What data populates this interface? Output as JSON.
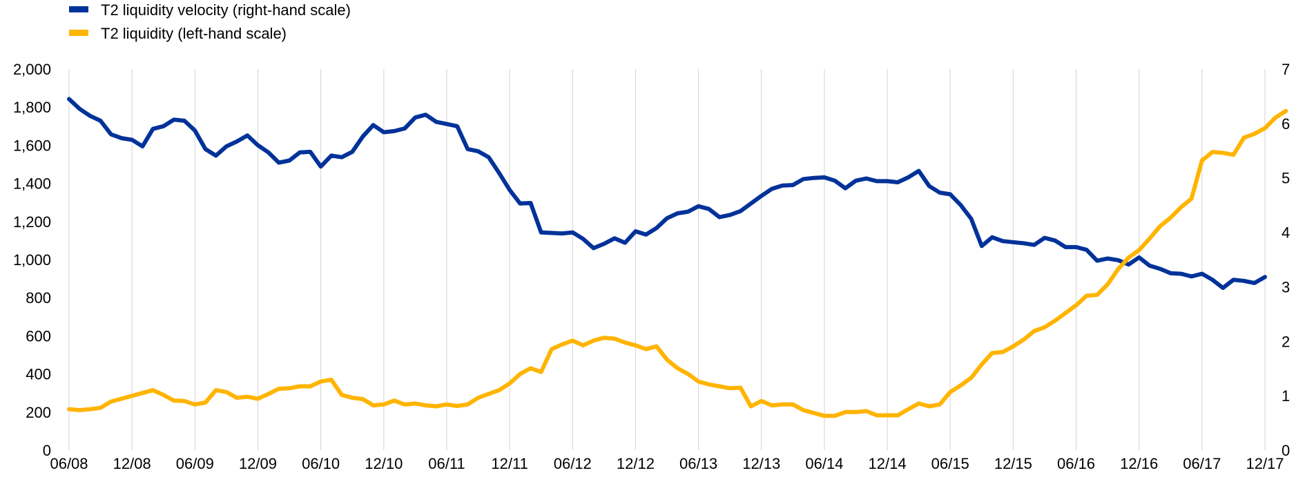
{
  "chart_data": {
    "type": "line",
    "title": "",
    "legend_position": "top-left",
    "grid": {
      "vertical": true,
      "horizontal": false
    },
    "x_tick_labels": [
      "06/08",
      "12/08",
      "06/09",
      "12/09",
      "06/10",
      "12/10",
      "06/11",
      "12/11",
      "06/12",
      "12/12",
      "06/13",
      "12/13",
      "06/14",
      "12/14",
      "06/15",
      "12/15",
      "06/16",
      "12/16",
      "06/17",
      "12/17"
    ],
    "y_left": {
      "min": 0,
      "max": 2000,
      "ticks": [
        "0",
        "200",
        "400",
        "600",
        "800",
        "1,000",
        "1,200",
        "1,400",
        "1,600",
        "1,800",
        "2,000"
      ]
    },
    "y_right": {
      "min": 0,
      "max": 7,
      "ticks": [
        "0",
        "1",
        "2",
        "3",
        "4",
        "5",
        "6",
        "7"
      ]
    },
    "x_start": "06/08",
    "x_step_months": 1,
    "series": [
      {
        "name": "T2 liquidity velocity (right-hand scale)",
        "color": "#003299",
        "axis": "right",
        "values": [
          6.45,
          6.27,
          6.14,
          6.05,
          5.8,
          5.73,
          5.7,
          5.58,
          5.9,
          5.95,
          6.07,
          6.05,
          5.87,
          5.53,
          5.41,
          5.58,
          5.67,
          5.78,
          5.6,
          5.47,
          5.28,
          5.32,
          5.47,
          5.48,
          5.21,
          5.41,
          5.38,
          5.48,
          5.76,
          5.97,
          5.84,
          5.86,
          5.91,
          6.11,
          6.16,
          6.03,
          5.99,
          5.95,
          5.53,
          5.49,
          5.38,
          5.09,
          4.78,
          4.53,
          4.54,
          4.0,
          3.99,
          3.98,
          4.0,
          3.88,
          3.71,
          3.79,
          3.89,
          3.81,
          4.02,
          3.96,
          4.08,
          4.26,
          4.35,
          4.38,
          4.48,
          4.43,
          4.28,
          4.32,
          4.39,
          4.53,
          4.67,
          4.8,
          4.86,
          4.87,
          4.98,
          5.0,
          5.01,
          4.95,
          4.81,
          4.95,
          4.99,
          4.94,
          4.94,
          4.92,
          5.01,
          5.13,
          4.85,
          4.73,
          4.7,
          4.5,
          4.25,
          3.75,
          3.91,
          3.84,
          3.82,
          3.8,
          3.77,
          3.9,
          3.85,
          3.73,
          3.73,
          3.68,
          3.48,
          3.52,
          3.49,
          3.41,
          3.54,
          3.39,
          3.33,
          3.25,
          3.24,
          3.19,
          3.24,
          3.13,
          2.98,
          3.13,
          3.11,
          3.07,
          3.18
        ]
      },
      {
        "name": "T2 liquidity (left-hand scale)",
        "color": "#FFB400",
        "axis": "left",
        "values": [
          215,
          210,
          215,
          222,
          255,
          270,
          285,
          300,
          315,
          290,
          260,
          258,
          240,
          250,
          315,
          305,
          275,
          280,
          270,
          295,
          322,
          325,
          335,
          335,
          360,
          370,
          290,
          275,
          268,
          235,
          240,
          260,
          240,
          245,
          235,
          230,
          240,
          232,
          240,
          275,
          295,
          315,
          350,
          400,
          430,
          410,
          530,
          555,
          575,
          550,
          575,
          590,
          585,
          565,
          550,
          530,
          545,
          475,
          430,
          400,
          360,
          345,
          335,
          325,
          328,
          230,
          258,
          235,
          240,
          240,
          210,
          195,
          180,
          180,
          200,
          200,
          205,
          183,
          183,
          183,
          215,
          245,
          230,
          240,
          305,
          340,
          380,
          450,
          510,
          515,
          545,
          580,
          625,
          645,
          680,
          720,
          760,
          810,
          815,
          870,
          950,
          1010,
          1050,
          1110,
          1175,
          1220,
          1275,
          1320,
          1520,
          1565,
          1560,
          1550,
          1640,
          1660,
          1690,
          1745,
          1780
        ]
      }
    ]
  }
}
